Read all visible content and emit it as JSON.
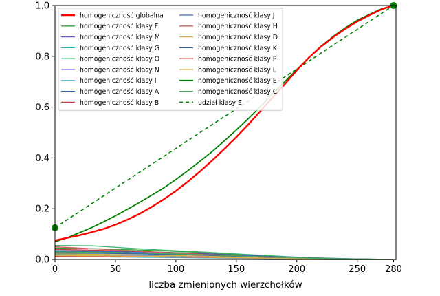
{
  "chart_data": {
    "type": "line",
    "title": "",
    "xlabel": "liczba zmienionych wierzchołków",
    "ylabel": "",
    "xlim": [
      0,
      282
    ],
    "ylim": [
      0,
      1.0
    ],
    "xticks": [
      0,
      50,
      100,
      150,
      200,
      250,
      280
    ],
    "yticks": [
      0.0,
      0.2,
      0.4,
      0.6,
      0.8,
      1.0
    ],
    "xtick_labels": [
      "0",
      "50",
      "100",
      "150",
      "200",
      "250",
      "280"
    ],
    "ytick_labels": [
      "0.0",
      "0.2",
      "0.4",
      "0.6",
      "0.8",
      "1.0"
    ],
    "grid": false,
    "legend_position": "top-left",
    "legend_columns": 2,
    "series": [
      {
        "name": "homogeniczność globalna",
        "color": "#ff0000",
        "width": 2.4,
        "dash": "",
        "points": [
          [
            0,
            0.075
          ],
          [
            10,
            0.085
          ],
          [
            20,
            0.095
          ],
          [
            30,
            0.107
          ],
          [
            40,
            0.12
          ],
          [
            50,
            0.137
          ],
          [
            60,
            0.157
          ],
          [
            70,
            0.18
          ],
          [
            80,
            0.207
          ],
          [
            90,
            0.237
          ],
          [
            100,
            0.27
          ],
          [
            110,
            0.307
          ],
          [
            120,
            0.347
          ],
          [
            130,
            0.39
          ],
          [
            140,
            0.435
          ],
          [
            150,
            0.482
          ],
          [
            160,
            0.532
          ],
          [
            170,
            0.585
          ],
          [
            180,
            0.638
          ],
          [
            190,
            0.69
          ],
          [
            200,
            0.745
          ],
          [
            210,
            0.795
          ],
          [
            220,
            0.838
          ],
          [
            230,
            0.875
          ],
          [
            240,
            0.908
          ],
          [
            250,
            0.937
          ],
          [
            260,
            0.962
          ],
          [
            270,
            0.985
          ],
          [
            280,
            1.0
          ]
        ]
      },
      {
        "name": "homogeniczność klasy F",
        "color": "#33a02c",
        "width": 1.3,
        "dash": "",
        "points": [
          [
            0,
            0.045
          ],
          [
            40,
            0.042
          ],
          [
            80,
            0.036
          ],
          [
            120,
            0.028
          ],
          [
            160,
            0.018
          ],
          [
            200,
            0.008
          ],
          [
            240,
            0.003
          ],
          [
            280,
            0.0
          ]
        ]
      },
      {
        "name": "homogeniczność klasy M",
        "color": "#6a5acd",
        "width": 1.3,
        "dash": "",
        "points": [
          [
            0,
            0.028
          ],
          [
            40,
            0.026
          ],
          [
            80,
            0.022
          ],
          [
            120,
            0.017
          ],
          [
            160,
            0.011
          ],
          [
            200,
            0.005
          ],
          [
            240,
            0.002
          ],
          [
            280,
            0.0
          ]
        ]
      },
      {
        "name": "homogeniczność klasy G",
        "color": "#20b2aa",
        "width": 1.3,
        "dash": "",
        "points": [
          [
            0,
            0.02
          ],
          [
            40,
            0.019
          ],
          [
            80,
            0.016
          ],
          [
            120,
            0.012
          ],
          [
            160,
            0.008
          ],
          [
            200,
            0.004
          ],
          [
            240,
            0.002
          ],
          [
            280,
            0.0
          ]
        ]
      },
      {
        "name": "homogeniczność klasy O",
        "color": "#3cb371",
        "width": 1.3,
        "dash": "",
        "points": [
          [
            0,
            0.055
          ],
          [
            30,
            0.054
          ],
          [
            60,
            0.045
          ],
          [
            90,
            0.037
          ],
          [
            120,
            0.03
          ],
          [
            150,
            0.022
          ],
          [
            180,
            0.014
          ],
          [
            210,
            0.007
          ],
          [
            240,
            0.003
          ],
          [
            280,
            0.0
          ]
        ]
      },
      {
        "name": "homogeniczność klasy N",
        "color": "#7b68ee",
        "width": 1.3,
        "dash": "",
        "points": [
          [
            0,
            0.016
          ],
          [
            40,
            0.015
          ],
          [
            80,
            0.013
          ],
          [
            120,
            0.01
          ],
          [
            160,
            0.007
          ],
          [
            200,
            0.003
          ],
          [
            240,
            0.001
          ],
          [
            280,
            0.0
          ]
        ]
      },
      {
        "name": "homogeniczność klasy I",
        "color": "#48b8d0",
        "width": 1.3,
        "dash": "",
        "points": [
          [
            0,
            0.01
          ],
          [
            40,
            0.01
          ],
          [
            80,
            0.008
          ],
          [
            120,
            0.006
          ],
          [
            160,
            0.004
          ],
          [
            200,
            0.002
          ],
          [
            240,
            0.001
          ],
          [
            280,
            0.0
          ]
        ]
      },
      {
        "name": "homogeniczność klasy A",
        "color": "#3060b0",
        "width": 1.3,
        "dash": "",
        "points": [
          [
            0,
            0.035
          ],
          [
            40,
            0.033
          ],
          [
            80,
            0.03
          ],
          [
            120,
            0.024
          ],
          [
            160,
            0.015
          ],
          [
            200,
            0.007
          ],
          [
            240,
            0.002
          ],
          [
            280,
            0.0
          ]
        ]
      },
      {
        "name": "homogeniczność klasy B",
        "color": "#c04040",
        "width": 1.3,
        "dash": "",
        "points": [
          [
            0,
            0.04
          ],
          [
            40,
            0.036
          ],
          [
            80,
            0.03
          ],
          [
            120,
            0.022
          ],
          [
            160,
            0.014
          ],
          [
            200,
            0.006
          ],
          [
            240,
            0.002
          ],
          [
            280,
            0.0
          ]
        ]
      },
      {
        "name": "homogeniczność klasy J",
        "color": "#4169b0",
        "width": 1.3,
        "dash": "",
        "points": [
          [
            0,
            0.032
          ],
          [
            40,
            0.03
          ],
          [
            80,
            0.026
          ],
          [
            120,
            0.021
          ],
          [
            160,
            0.014
          ],
          [
            200,
            0.007
          ],
          [
            240,
            0.003
          ],
          [
            280,
            0.0
          ]
        ]
      },
      {
        "name": "homogeniczność klasy H",
        "color": "#cd5c5c",
        "width": 1.3,
        "dash": "",
        "points": [
          [
            0,
            0.05
          ],
          [
            40,
            0.04
          ],
          [
            80,
            0.03
          ],
          [
            120,
            0.02
          ],
          [
            160,
            0.012
          ],
          [
            200,
            0.005
          ],
          [
            240,
            0.002
          ],
          [
            280,
            0.0
          ]
        ]
      },
      {
        "name": "homogeniczność klasy D",
        "color": "#d4b040",
        "width": 1.3,
        "dash": "",
        "points": [
          [
            0,
            0.022
          ],
          [
            40,
            0.02
          ],
          [
            80,
            0.017
          ],
          [
            120,
            0.013
          ],
          [
            160,
            0.009
          ],
          [
            200,
            0.004
          ],
          [
            240,
            0.002
          ],
          [
            280,
            0.0
          ]
        ]
      },
      {
        "name": "homogeniczność klasy K",
        "color": "#2f5fa8",
        "width": 1.3,
        "dash": "",
        "points": [
          [
            0,
            0.025
          ],
          [
            40,
            0.024
          ],
          [
            80,
            0.021
          ],
          [
            120,
            0.017
          ],
          [
            160,
            0.011
          ],
          [
            200,
            0.005
          ],
          [
            240,
            0.002
          ],
          [
            280,
            0.0
          ]
        ]
      },
      {
        "name": "homogeniczność klasy P",
        "color": "#c84848",
        "width": 1.3,
        "dash": "",
        "points": [
          [
            0,
            0.012
          ],
          [
            40,
            0.011
          ],
          [
            80,
            0.01
          ],
          [
            120,
            0.008
          ],
          [
            160,
            0.005
          ],
          [
            200,
            0.003
          ],
          [
            240,
            0.001
          ],
          [
            280,
            0.0
          ]
        ]
      },
      {
        "name": "homogeniczność klasy L",
        "color": "#d8b050",
        "width": 1.3,
        "dash": "",
        "points": [
          [
            0,
            0.015
          ],
          [
            40,
            0.014
          ],
          [
            80,
            0.012
          ],
          [
            120,
            0.009
          ],
          [
            160,
            0.006
          ],
          [
            200,
            0.003
          ],
          [
            240,
            0.001
          ],
          [
            280,
            0.0
          ]
        ]
      },
      {
        "name": "homogeniczność klasy E",
        "color": "#008000",
        "width": 1.8,
        "dash": "",
        "points": [
          [
            0,
            0.07
          ],
          [
            10,
            0.085
          ],
          [
            20,
            0.105
          ],
          [
            30,
            0.125
          ],
          [
            40,
            0.148
          ],
          [
            50,
            0.172
          ],
          [
            60,
            0.198
          ],
          [
            70,
            0.225
          ],
          [
            80,
            0.253
          ],
          [
            90,
            0.282
          ],
          [
            100,
            0.315
          ],
          [
            110,
            0.35
          ],
          [
            120,
            0.387
          ],
          [
            130,
            0.425
          ],
          [
            140,
            0.467
          ],
          [
            150,
            0.51
          ],
          [
            160,
            0.555
          ],
          [
            170,
            0.603
          ],
          [
            180,
            0.653
          ],
          [
            190,
            0.7
          ],
          [
            200,
            0.748
          ],
          [
            210,
            0.795
          ],
          [
            220,
            0.84
          ],
          [
            230,
            0.878
          ],
          [
            240,
            0.912
          ],
          [
            250,
            0.942
          ],
          [
            260,
            0.965
          ],
          [
            270,
            0.987
          ],
          [
            280,
            1.0
          ]
        ]
      },
      {
        "name": "homogeniczność klasy C",
        "color": "#4aa860",
        "width": 1.3,
        "dash": "",
        "points": [
          [
            0,
            0.03
          ],
          [
            40,
            0.028
          ],
          [
            80,
            0.024
          ],
          [
            120,
            0.019
          ],
          [
            160,
            0.012
          ],
          [
            200,
            0.006
          ],
          [
            240,
            0.002
          ],
          [
            280,
            0.0
          ]
        ]
      },
      {
        "name": "udział klasy E",
        "color": "#008000",
        "width": 1.6,
        "dash": "5,4",
        "points": [
          [
            0,
            0.125
          ],
          [
            280,
            1.0
          ]
        ]
      }
    ],
    "markers": [
      {
        "x": 0,
        "y": 0.125,
        "color": "#008000"
      },
      {
        "x": 280,
        "y": 1.0,
        "color": "#008000"
      }
    ]
  }
}
